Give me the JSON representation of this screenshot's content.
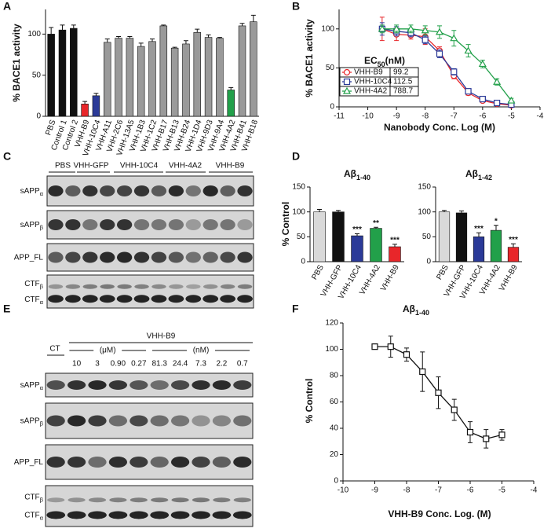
{
  "panel_labels": [
    "A",
    "B",
    "C",
    "D",
    "E",
    "F"
  ],
  "chart_data": [
    {
      "type": "bar",
      "y_label": "% BACE1 activity",
      "categories": [
        "PBS",
        "Control 1",
        "Control 2",
        "VHH-B9",
        "VHH-10C4",
        "VHH-A11",
        "VHH-2C6",
        "VHH-13A5",
        "VHH-1B3",
        "VHH-1C2",
        "VHH-B17",
        "VHH-B13",
        "VHH-B24",
        "VHH-1D4",
        "VHH-9D3",
        "VHH-9A4",
        "VHH-4A2",
        "VHH-B41",
        "VHH-B18"
      ],
      "values": [
        100,
        105,
        107,
        15,
        25,
        90,
        95,
        95,
        85,
        91,
        110,
        83,
        88,
        102,
        96,
        95,
        32,
        110,
        115
      ],
      "errors": [
        8,
        6,
        4,
        3,
        3,
        4,
        2,
        2,
        4,
        3,
        1,
        1,
        4,
        4,
        3,
        1,
        3,
        3,
        8
      ],
      "colors": [
        "#111111",
        "#111111",
        "#111111",
        "#e8262a",
        "#2b3a98",
        "#9a9a9a",
        "#9a9a9a",
        "#9a9a9a",
        "#9a9a9a",
        "#9a9a9a",
        "#9a9a9a",
        "#9a9a9a",
        "#9a9a9a",
        "#9a9a9a",
        "#9a9a9a",
        "#9a9a9a",
        "#22a04a",
        "#9a9a9a",
        "#9a9a9a"
      ],
      "ylim": [
        0,
        130
      ],
      "yticks": [
        0,
        50,
        100
      ]
    },
    {
      "type": "line",
      "x_label": "Nanobody Conc. Log (M)",
      "y_label": "% BACE1 activity",
      "legend_title": "EC",
      "legend_title_sub": "50",
      "legend_title_unit": "(nM)",
      "x": [
        -9.5,
        -9,
        -8.5,
        -8,
        -7.5,
        -7,
        -6.5,
        -6,
        -5.5,
        -5
      ],
      "series": [
        {
          "name": "VHH-B9",
          "color": "#e8262a",
          "marker": "circle",
          "ec50": "99.2",
          "values": [
            100,
            93,
            92,
            90,
            72,
            40,
            18,
            8,
            4,
            2
          ],
          "errors": [
            15,
            8,
            5,
            10,
            5,
            4,
            3,
            2,
            2,
            1
          ]
        },
        {
          "name": "VHH-10C4",
          "color": "#2b3a98",
          "marker": "square",
          "ec50": "112.5",
          "values": [
            100,
            97,
            95,
            86,
            68,
            45,
            20,
            10,
            5,
            3
          ],
          "errors": [
            8,
            6,
            5,
            5,
            5,
            4,
            3,
            2,
            2,
            1
          ]
        },
        {
          "name": "VHH-4A2",
          "color": "#22a04a",
          "marker": "triangle",
          "ec50": "788.7",
          "values": [
            100,
            100,
            100,
            98,
            96,
            88,
            72,
            55,
            32,
            8
          ],
          "errors": [
            5,
            5,
            5,
            6,
            8,
            10,
            8,
            5,
            4,
            3
          ]
        }
      ],
      "xlim": [
        -11,
        -4
      ],
      "xticks": [
        -11,
        -10,
        -9,
        -8,
        -7,
        -6,
        -5,
        -4
      ],
      "ylim": [
        0,
        125
      ],
      "yticks": [
        0,
        50,
        100
      ]
    },
    {
      "type": "bar",
      "title": "Aβ",
      "title_sub": "1-40",
      "y_label": "% Control",
      "categories": [
        "PBS",
        "VHH-GFP",
        "VHH-10C4",
        "VHH-4A2",
        "VHH-B9"
      ],
      "values": [
        100,
        100,
        52,
        67,
        30
      ],
      "errors": [
        5,
        3,
        4,
        2,
        5
      ],
      "annotations": [
        null,
        null,
        "***",
        "**",
        "***"
      ],
      "colors": [
        "#d9d9d9",
        "#111111",
        "#2b3a98",
        "#22a04a",
        "#e8262a"
      ],
      "ylim": [
        0,
        150
      ],
      "yticks": [
        0,
        50,
        100,
        150
      ]
    },
    {
      "type": "bar",
      "title": "Aβ",
      "title_sub": "1-42",
      "categories": [
        "PBS",
        "VHH-GFP",
        "VHH-10C4",
        "VHH-4A2",
        "VHH-B9"
      ],
      "values": [
        100,
        98,
        50,
        63,
        29
      ],
      "errors": [
        3,
        4,
        8,
        10,
        7
      ],
      "annotations": [
        null,
        null,
        "***",
        "*",
        "***"
      ],
      "colors": [
        "#d9d9d9",
        "#111111",
        "#2b3a98",
        "#22a04a",
        "#e8262a"
      ],
      "ylim": [
        0,
        150
      ],
      "yticks": [
        0,
        50,
        100,
        150
      ]
    },
    {
      "type": "line",
      "title": "Aβ",
      "title_sub": "1-40",
      "x_label": "VHH-B9 Conc. Log. (M)",
      "y_label": "% Control",
      "x": [
        -9,
        -8.5,
        -8,
        -7.5,
        -7,
        -6.5,
        -6,
        -5.5,
        -5
      ],
      "series": [
        {
          "color": "#111111",
          "marker": "square",
          "values": [
            102,
            102,
            96,
            83,
            67,
            54,
            37,
            32,
            35
          ],
          "errors": [
            2,
            8,
            5,
            15,
            12,
            8,
            8,
            7,
            4
          ]
        }
      ],
      "xlim": [
        -10,
        -4
      ],
      "xticks": [
        -10,
        -9,
        -8,
        -7,
        -6,
        -5,
        -4
      ],
      "ylim": [
        0,
        120
      ],
      "yticks": [
        0,
        20,
        40,
        60,
        80,
        100,
        120
      ]
    }
  ],
  "blots": [
    {
      "groups": [
        "PBS",
        "VHH-GFP",
        "VHH-10C4",
        "VHH-4A2",
        "VHH-B9"
      ],
      "rows": [
        [
          {
            "text": "sAPP",
            "sub": "α"
          }
        ],
        [
          {
            "text": "sAPP",
            "sub": "β"
          }
        ],
        [
          {
            "text": "APP_FL"
          }
        ],
        [
          {
            "text": "CTF",
            "sub": "β"
          },
          {
            "text": "CTF",
            "sub": "α"
          }
        ]
      ]
    },
    {
      "control": "CT",
      "treatment": "VHH-B9",
      "units": [
        "(μM)",
        "(nM)"
      ],
      "concentrations": [
        "10",
        "3",
        "0.90",
        "0.27",
        "81.3",
        "24.4",
        "7.3",
        "2.2",
        "0.7"
      ],
      "rows": [
        [
          {
            "text": "sAPP",
            "sub": "α"
          }
        ],
        [
          {
            "text": "sAPP",
            "sub": "β"
          }
        ],
        [
          {
            "text": "APP_FL"
          }
        ],
        [
          {
            "text": "CTF",
            "sub": "β"
          },
          {
            "text": "CTF",
            "sub": "α"
          }
        ]
      ]
    }
  ]
}
